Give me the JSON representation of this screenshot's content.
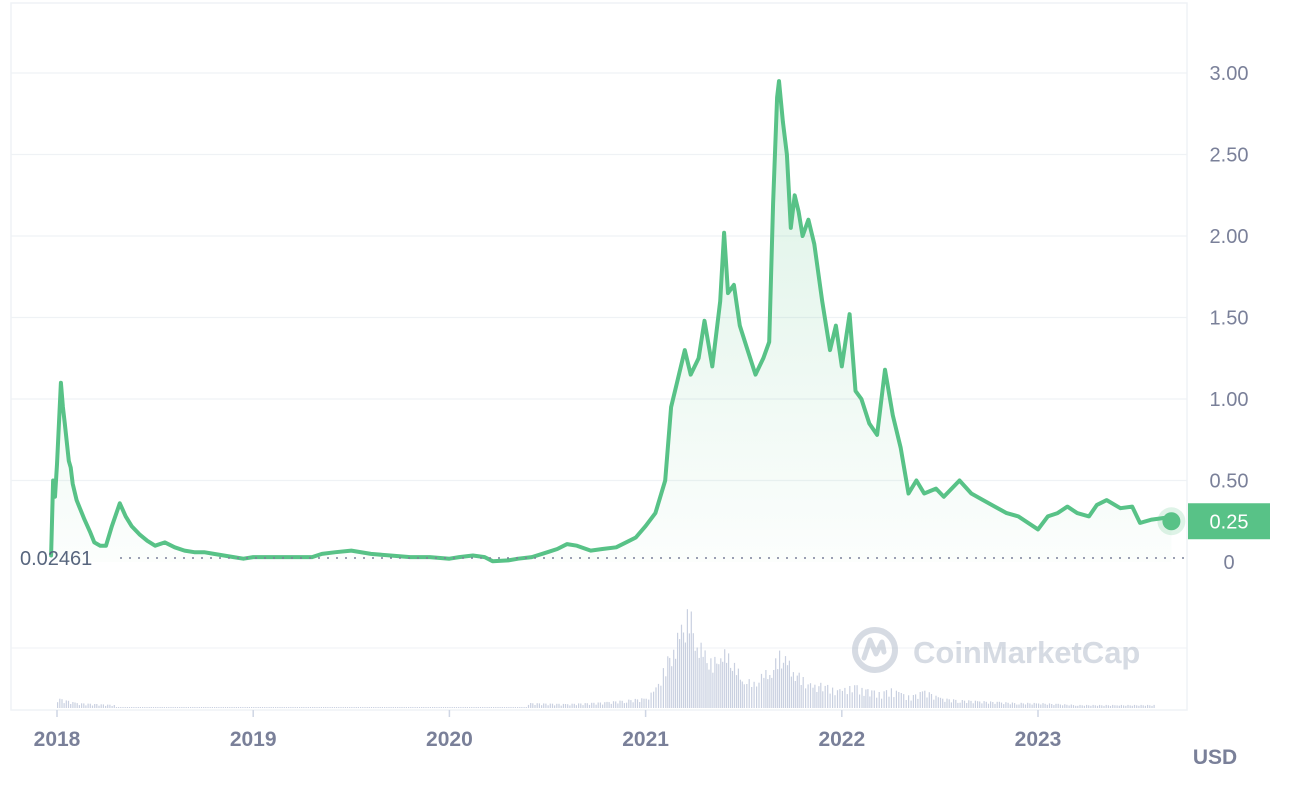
{
  "watermark": {
    "text": "CoinMarketCap",
    "logo": "coinmarketcap-logo-icon"
  },
  "currency_label": "USD",
  "colors": {
    "line": "#58c287",
    "down": "#d94c4c",
    "grid": "#eff2f5",
    "axis_text": "#7a8099",
    "badge": "#58c287",
    "volume": "#cfd6e4"
  },
  "chart_data": {
    "type": "line",
    "title": "",
    "xlabel": "",
    "ylabel": "",
    "y_ticks": [
      "0",
      "0.50",
      "1.00",
      "1.50",
      "2.00",
      "2.50",
      "3.00"
    ],
    "y_tick_values": [
      0,
      0.5,
      1.0,
      1.5,
      2.0,
      2.5,
      3.0
    ],
    "x_ticks": [
      "2018",
      "2019",
      "2020",
      "2021",
      "2022",
      "2023"
    ],
    "x_tick_values": [
      2018.0,
      2019.0,
      2020.0,
      2021.0,
      2022.0,
      2023.0
    ],
    "ylim": [
      0,
      3.3
    ],
    "xlim": [
      2017.72,
      2023.7
    ],
    "baseline_label": "0.02461",
    "baseline_value": 0.02461,
    "current_price_label": "0.25",
    "current_price": 0.25,
    "grid": true,
    "series": [
      {
        "values": [
          [
            2017.97,
            0.04
          ],
          [
            2017.98,
            0.5
          ],
          [
            2017.99,
            0.4
          ],
          [
            2018.0,
            0.6
          ],
          [
            2018.02,
            1.1
          ],
          [
            2018.03,
            0.95
          ],
          [
            2018.04,
            0.85
          ],
          [
            2018.06,
            0.62
          ],
          [
            2018.07,
            0.58
          ],
          [
            2018.08,
            0.48
          ],
          [
            2018.1,
            0.38
          ],
          [
            2018.12,
            0.32
          ],
          [
            2018.14,
            0.26
          ],
          [
            2018.17,
            0.18
          ],
          [
            2018.19,
            0.12
          ],
          [
            2018.22,
            0.1
          ],
          [
            2018.25,
            0.1
          ],
          [
            2018.28,
            0.22
          ],
          [
            2018.32,
            0.36
          ],
          [
            2018.35,
            0.28
          ],
          [
            2018.38,
            0.22
          ],
          [
            2018.42,
            0.17
          ],
          [
            2018.46,
            0.13
          ],
          [
            2018.5,
            0.1
          ],
          [
            2018.55,
            0.12
          ],
          [
            2018.6,
            0.09
          ],
          [
            2018.65,
            0.07
          ],
          [
            2018.7,
            0.06
          ],
          [
            2018.75,
            0.06
          ],
          [
            2018.8,
            0.05
          ],
          [
            2018.85,
            0.04
          ],
          [
            2018.9,
            0.03
          ],
          [
            2018.95,
            0.02
          ],
          [
            2019.0,
            0.03
          ],
          [
            2019.1,
            0.03
          ],
          [
            2019.2,
            0.03
          ],
          [
            2019.3,
            0.03
          ],
          [
            2019.35,
            0.05
          ],
          [
            2019.42,
            0.06
          ],
          [
            2019.5,
            0.07
          ],
          [
            2019.6,
            0.05
          ],
          [
            2019.7,
            0.04
          ],
          [
            2019.8,
            0.03
          ],
          [
            2019.9,
            0.03
          ],
          [
            2020.0,
            0.02
          ],
          [
            2020.05,
            0.03
          ],
          [
            2020.12,
            0.04
          ],
          [
            2020.18,
            0.03
          ],
          [
            2020.22,
            0.005
          ],
          [
            2020.3,
            0.01
          ],
          [
            2020.35,
            0.02
          ],
          [
            2020.42,
            0.03
          ],
          [
            2020.5,
            0.06
          ],
          [
            2020.55,
            0.08
          ],
          [
            2020.6,
            0.11
          ],
          [
            2020.65,
            0.1
          ],
          [
            2020.72,
            0.07
          ],
          [
            2020.78,
            0.08
          ],
          [
            2020.85,
            0.09
          ],
          [
            2020.9,
            0.12
          ],
          [
            2020.95,
            0.15
          ],
          [
            2021.0,
            0.22
          ],
          [
            2021.05,
            0.3
          ],
          [
            2021.1,
            0.5
          ],
          [
            2021.13,
            0.95
          ],
          [
            2021.16,
            1.1
          ],
          [
            2021.2,
            1.3
          ],
          [
            2021.23,
            1.15
          ],
          [
            2021.27,
            1.25
          ],
          [
            2021.3,
            1.48
          ],
          [
            2021.34,
            1.2
          ],
          [
            2021.38,
            1.6
          ],
          [
            2021.4,
            2.02
          ],
          [
            2021.42,
            1.65
          ],
          [
            2021.45,
            1.7
          ],
          [
            2021.48,
            1.45
          ],
          [
            2021.52,
            1.3
          ],
          [
            2021.56,
            1.15
          ],
          [
            2021.6,
            1.25
          ],
          [
            2021.63,
            1.35
          ],
          [
            2021.65,
            2.2
          ],
          [
            2021.67,
            2.85
          ],
          [
            2021.68,
            2.95
          ],
          [
            2021.7,
            2.7
          ],
          [
            2021.72,
            2.5
          ],
          [
            2021.74,
            2.05
          ],
          [
            2021.76,
            2.25
          ],
          [
            2021.78,
            2.15
          ],
          [
            2021.8,
            2.0
          ],
          [
            2021.83,
            2.1
          ],
          [
            2021.86,
            1.95
          ],
          [
            2021.9,
            1.6
          ],
          [
            2021.94,
            1.3
          ],
          [
            2021.97,
            1.45
          ],
          [
            2022.0,
            1.2
          ],
          [
            2022.04,
            1.52
          ],
          [
            2022.07,
            1.05
          ],
          [
            2022.1,
            1.0
          ],
          [
            2022.14,
            0.85
          ],
          [
            2022.18,
            0.78
          ],
          [
            2022.22,
            1.18
          ],
          [
            2022.26,
            0.9
          ],
          [
            2022.3,
            0.7
          ],
          [
            2022.34,
            0.42
          ],
          [
            2022.38,
            0.5
          ],
          [
            2022.42,
            0.42
          ],
          [
            2022.48,
            0.45
          ],
          [
            2022.52,
            0.4
          ],
          [
            2022.6,
            0.5
          ],
          [
            2022.66,
            0.42
          ],
          [
            2022.72,
            0.38
          ],
          [
            2022.78,
            0.34
          ],
          [
            2022.84,
            0.3
          ],
          [
            2022.9,
            0.28
          ],
          [
            2022.95,
            0.24
          ],
          [
            2023.0,
            0.2
          ],
          [
            2023.05,
            0.28
          ],
          [
            2023.1,
            0.3
          ],
          [
            2023.15,
            0.34
          ],
          [
            2023.2,
            0.3
          ],
          [
            2023.26,
            0.28
          ],
          [
            2023.3,
            0.35
          ],
          [
            2023.35,
            0.38
          ],
          [
            2023.42,
            0.33
          ],
          [
            2023.48,
            0.34
          ],
          [
            2023.52,
            0.24
          ],
          [
            2023.58,
            0.26
          ],
          [
            2023.64,
            0.27
          ],
          [
            2023.68,
            0.25
          ]
        ]
      }
    ],
    "volume": {
      "units": "relative",
      "values": [
        [
          2018.0,
          0.1
        ],
        [
          2018.1,
          0.05
        ],
        [
          2018.3,
          0.03
        ],
        [
          2020.4,
          0.05
        ],
        [
          2020.6,
          0.04
        ],
        [
          2020.8,
          0.06
        ],
        [
          2020.9,
          0.08
        ],
        [
          2021.0,
          0.1
        ],
        [
          2021.05,
          0.2
        ],
        [
          2021.1,
          0.45
        ],
        [
          2021.14,
          0.65
        ],
        [
          2021.18,
          0.8
        ],
        [
          2021.22,
          1.0
        ],
        [
          2021.26,
          0.7
        ],
        [
          2021.3,
          0.55
        ],
        [
          2021.34,
          0.45
        ],
        [
          2021.38,
          0.6
        ],
        [
          2021.42,
          0.52
        ],
        [
          2021.46,
          0.4
        ],
        [
          2021.5,
          0.3
        ],
        [
          2021.55,
          0.25
        ],
        [
          2021.6,
          0.35
        ],
        [
          2021.64,
          0.4
        ],
        [
          2021.68,
          0.55
        ],
        [
          2021.72,
          0.48
        ],
        [
          2021.76,
          0.38
        ],
        [
          2021.8,
          0.3
        ],
        [
          2021.85,
          0.22
        ],
        [
          2021.9,
          0.25
        ],
        [
          2021.95,
          0.2
        ],
        [
          2022.0,
          0.18
        ],
        [
          2022.05,
          0.25
        ],
        [
          2022.1,
          0.2
        ],
        [
          2022.15,
          0.18
        ],
        [
          2022.2,
          0.16
        ],
        [
          2022.25,
          0.2
        ],
        [
          2022.3,
          0.15
        ],
        [
          2022.35,
          0.12
        ],
        [
          2022.42,
          0.18
        ],
        [
          2022.5,
          0.1
        ],
        [
          2022.6,
          0.08
        ],
        [
          2022.7,
          0.07
        ],
        [
          2022.8,
          0.06
        ],
        [
          2022.9,
          0.05
        ],
        [
          2023.0,
          0.05
        ],
        [
          2023.1,
          0.04
        ],
        [
          2023.2,
          0.03
        ],
        [
          2023.4,
          0.03
        ],
        [
          2023.6,
          0.03
        ]
      ]
    }
  }
}
